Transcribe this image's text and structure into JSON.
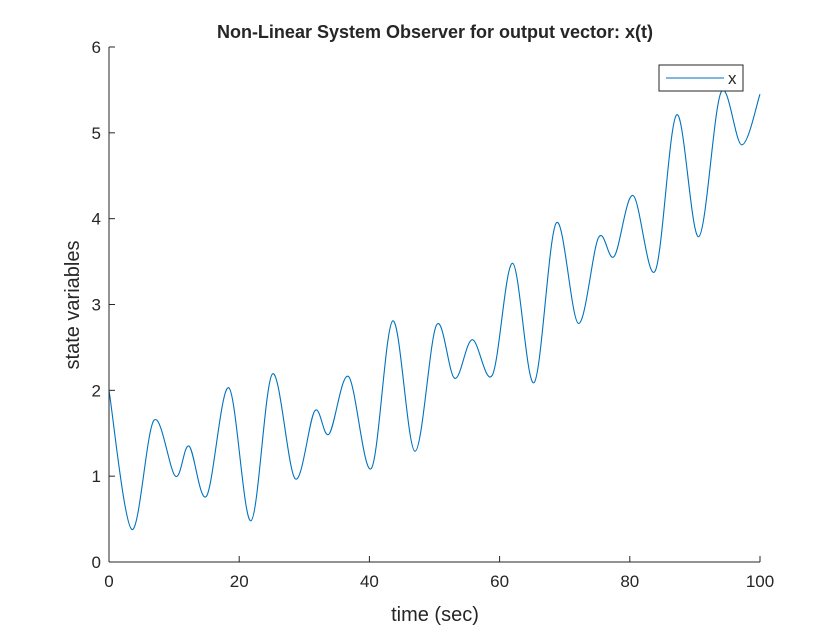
{
  "chart_data": {
    "type": "line",
    "title": "Non-Linear System Observer for output vector: x(t)",
    "xlabel": "time (sec)",
    "ylabel": "state variables",
    "xlim": [
      0,
      100
    ],
    "ylim": [
      0,
      6
    ],
    "xticks": [
      0,
      20,
      40,
      60,
      80,
      100
    ],
    "yticks": [
      0,
      1,
      2,
      3,
      4,
      5,
      6
    ],
    "xtick_labels": [
      "0",
      "20",
      "40",
      "60",
      "80",
      "100"
    ],
    "ytick_labels": [
      "0",
      "1",
      "2",
      "3",
      "4",
      "5",
      "6"
    ],
    "grid": false,
    "legend": {
      "position": "top-right",
      "entries": [
        "x"
      ]
    },
    "series": [
      {
        "name": "x",
        "color": "#0072BD",
        "x": [
          0,
          3.5,
          6.9,
          10.2,
          12.3,
          15.0,
          18.4,
          21.8,
          25.1,
          28.6,
          31.6,
          33.8,
          36.8,
          40.3,
          43.6,
          47.0,
          50.3,
          53.1,
          55.8,
          58.9,
          62.0,
          65.3,
          68.7,
          72.1,
          75.2,
          77.6,
          80.5,
          83.9,
          87.2,
          90.6,
          94.0,
          97.2,
          100
        ],
        "y": [
          2.0,
          0.38,
          1.65,
          1.0,
          1.35,
          0.77,
          2.03,
          0.48,
          2.19,
          0.97,
          1.76,
          1.49,
          2.16,
          1.09,
          2.81,
          1.29,
          2.76,
          2.14,
          2.59,
          2.18,
          3.48,
          2.09,
          3.95,
          2.78,
          3.78,
          3.56,
          4.27,
          3.39,
          5.21,
          3.79,
          5.47,
          4.86,
          5.45
        ]
      }
    ]
  }
}
